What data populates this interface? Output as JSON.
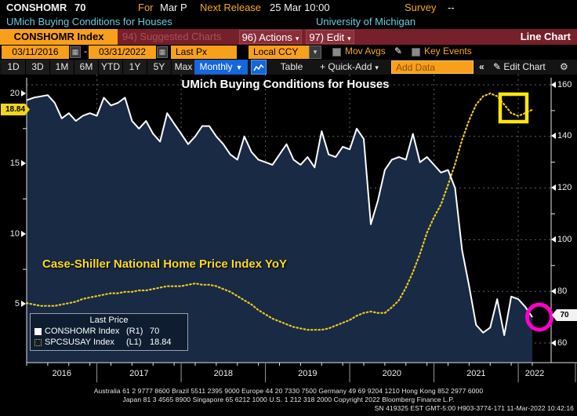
{
  "header": {
    "ticker": "CONSHOMR",
    "value": "70",
    "for_label": "For",
    "for_value": "Mar P",
    "next_release_label": "Next Release",
    "next_release_value": "25 Mar 10:00",
    "survey_label": "Survey",
    "survey_value": "--",
    "description": "UMich Buying Conditions for Houses",
    "source": "University of Michigan"
  },
  "menubar": {
    "security_tab": "CONSHOMR Index",
    "suggested_charts": "94) Suggested Charts",
    "actions": "96) Actions",
    "edit": "97) Edit",
    "chart_type": "Line Chart"
  },
  "controls": {
    "date_from": "03/11/2016",
    "date_separator": "-",
    "date_to": "03/31/2022",
    "price_mode": "Last Px",
    "currency": "Local CCY",
    "mov_avgs": "Mov Avgs",
    "key_events": "Key Events"
  },
  "toolbar": {
    "periods": [
      "1D",
      "3D",
      "1M",
      "6M",
      "YTD",
      "1Y",
      "5Y",
      "Max"
    ],
    "frequency": "Monthly",
    "table": "Table",
    "quick_add": "Quick-Add",
    "add_data_placeholder": "Add Data",
    "edit_chart": "Edit Chart"
  },
  "icons": {
    "calendar": "▦",
    "pencil": "✎",
    "gear": "⚙",
    "collapse": "«",
    "plus": "+",
    "caret_down_small": "▾",
    "caret_down": "▼"
  },
  "chart_data": {
    "type": "line",
    "title": "UMich Buying Conditions for Houses",
    "annotation": "Case-Shiller National Home Price Index YoY",
    "frequency": "monthly",
    "x_start": "2016-03",
    "x_end": "2022-03",
    "x_tick_labels": [
      "2016",
      "2017",
      "2018",
      "2019",
      "2020",
      "2021",
      "2022"
    ],
    "left_axis": {
      "ticks": [
        20,
        15,
        10,
        5
      ],
      "minor_ticks": [
        17.5,
        12.5,
        7.5
      ],
      "last_badge": "18.84"
    },
    "right_axis": {
      "ticks": [
        160,
        140,
        120,
        100,
        80,
        60
      ],
      "minor_ticks": [
        150,
        130,
        110,
        90
      ],
      "last_badge": "70"
    },
    "series": [
      {
        "name": "CONSHOMR Index",
        "axis": "R1",
        "color": "#ffffff",
        "style": "solid",
        "last": 70,
        "values": [
          154,
          155,
          155.5,
          156,
          153,
          147,
          149,
          146,
          148,
          149,
          148,
          155,
          152,
          153,
          155,
          146,
          143,
          146,
          141,
          138,
          149,
          145,
          141,
          137,
          140,
          144,
          144,
          140,
          137,
          133,
          131,
          140,
          134,
          131,
          130,
          129,
          133,
          137,
          131,
          129,
          132,
          128,
          142,
          133,
          132,
          136,
          135,
          143,
          139,
          106,
          115,
          127,
          131,
          132,
          131,
          141,
          130,
          132,
          129,
          126,
          127,
          120,
          96,
          82,
          67,
          64,
          66,
          77,
          63,
          78,
          77,
          74,
          70
        ]
      },
      {
        "name": "SPCSUSAY Index",
        "axis": "L1",
        "color": "#ecc723",
        "style": "dotted",
        "last": 18.84,
        "values": [
          5.1,
          5.0,
          4.9,
          4.9,
          4.9,
          5.0,
          5.1,
          5.2,
          5.4,
          5.5,
          5.6,
          5.7,
          5.8,
          5.8,
          5.9,
          5.9,
          6.0,
          6.0,
          6.1,
          6.2,
          6.3,
          6.3,
          6.3,
          6.4,
          6.5,
          6.4,
          6.4,
          6.3,
          6.1,
          5.9,
          5.6,
          5.3,
          5.0,
          4.6,
          4.3,
          4.0,
          3.8,
          3.6,
          3.4,
          3.3,
          3.2,
          3.2,
          3.2,
          3.3,
          3.5,
          3.7,
          3.9,
          4.2,
          4.4,
          4.5,
          4.4,
          4.4,
          4.8,
          5.3,
          6.2,
          7.3,
          8.6,
          10.1,
          11.2,
          12.1,
          13.5,
          15.0,
          16.7,
          18.1,
          19.2,
          19.8,
          20.0,
          19.8,
          19.2,
          18.6,
          18.4,
          18.6,
          18.84
        ]
      }
    ],
    "legend": {
      "title": "Last Price",
      "rows": [
        {
          "name": "CONSHOMR Index",
          "axis": "(R1)",
          "value": "70"
        },
        {
          "name": "SPCSUSAY Index",
          "axis": "(L1)",
          "value": "18.84"
        }
      ]
    },
    "annotations": [
      {
        "type": "rect",
        "color": "#ffe70a",
        "target": "SPCSUSAY recent dip"
      },
      {
        "type": "ellipse",
        "color": "#ff00cc",
        "target": "CONSHOMR last value"
      }
    ]
  },
  "footer": {
    "line1": "Australia 61 2 9777 8600 Brazil 5511 2395 9000 Europe 44 20 7330 7500 Germany 49 69 9204 1210 Hong Kong 852 2977 6000",
    "line2": "Japan 81 3 4565 8900        Singapore 65 6212 1000        U.S. 1 212 318 2000        Copyright 2022 Bloomberg Finance L.P.",
    "line3": "SN 419325 EST  GMT-5:00 H903-3774-171 11-Mar-2022 10:42:16"
  }
}
